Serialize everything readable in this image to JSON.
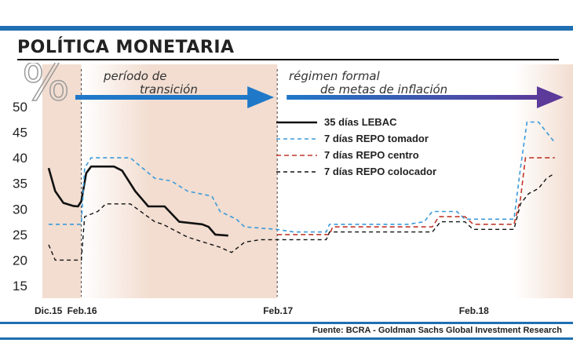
{
  "title": "POLÍTICA MONETARIA",
  "source": "Fuente: BCRA - Goldman Sachs Global Investment Research",
  "unit_symbol": "%",
  "colors": {
    "accent": "#1f6fb2",
    "shade": "#f2ddd0",
    "lebac": "#111111",
    "tomador": "#3a9ad9",
    "centro": "#c0392b",
    "colocador": "#111111",
    "arrow_blue": "#1f78c8",
    "arrow_purple": "#5b3a9a"
  },
  "chart_data": {
    "type": "line",
    "ylim": [
      15,
      50
    ],
    "yticks": [
      50,
      45,
      40,
      35,
      30,
      25,
      20,
      15
    ],
    "x_tick_labels": [
      "Dic.15",
      "Feb.16",
      "Feb.17",
      "Feb.18"
    ],
    "x_ticks_month": [
      0,
      2,
      14,
      26
    ],
    "x_range_month": [
      -0.3,
      31.5
    ],
    "periods": [
      {
        "label_lines": [
          "período de",
          "transición"
        ],
        "start_month": 2,
        "end_month": 14
      },
      {
        "label_lines": [
          "régimen formal",
          "de metas de inflación"
        ],
        "start_month": 14,
        "end_month": 31.5
      }
    ],
    "shaded_ranges_month": [
      [
        -0.3,
        2
      ],
      [
        2,
        14
      ],
      [
        28.5,
        31.5
      ]
    ],
    "series": [
      {
        "name": "35 días LEBAC",
        "style": "solid",
        "points": [
          [
            0,
            38
          ],
          [
            0.4,
            33.5
          ],
          [
            0.9,
            31.2
          ],
          [
            1.5,
            30.6
          ],
          [
            1.8,
            30.5
          ],
          [
            2,
            31.5
          ],
          [
            2.3,
            37
          ],
          [
            2.6,
            38.3
          ],
          [
            4,
            38.3
          ],
          [
            4.5,
            37.5
          ],
          [
            5.3,
            33.5
          ],
          [
            6.1,
            30.5
          ],
          [
            7.1,
            30.5
          ],
          [
            8,
            27.5
          ],
          [
            9.4,
            27
          ],
          [
            9.8,
            26.5
          ],
          [
            10.2,
            25
          ],
          [
            11,
            24.8
          ]
        ]
      },
      {
        "name": "7 días REPO tomador",
        "style": "dash",
        "points": [
          [
            0,
            27
          ],
          [
            2,
            27
          ],
          [
            2.2,
            38
          ],
          [
            2.6,
            40
          ],
          [
            5,
            40
          ],
          [
            6.5,
            36
          ],
          [
            7.5,
            35.5
          ],
          [
            8.5,
            33.5
          ],
          [
            10,
            32.5
          ],
          [
            10.5,
            29.5
          ],
          [
            11.5,
            28
          ],
          [
            12,
            26.5
          ],
          [
            14,
            26
          ],
          [
            15,
            25.5
          ],
          [
            17,
            25.5
          ],
          [
            17.2,
            27
          ],
          [
            22,
            27
          ],
          [
            23,
            27.5
          ],
          [
            23.5,
            29.5
          ],
          [
            25,
            29.5
          ],
          [
            25.5,
            28
          ],
          [
            28.5,
            28
          ],
          [
            28.9,
            38
          ],
          [
            29.3,
            47
          ],
          [
            30,
            47
          ],
          [
            31,
            43
          ]
        ]
      },
      {
        "name": "7 días REPO centro",
        "style": "dash",
        "points": [
          [
            14,
            25
          ],
          [
            17.2,
            25
          ],
          [
            17.4,
            26.5
          ],
          [
            23.5,
            26.5
          ],
          [
            23.9,
            28.5
          ],
          [
            25.5,
            28.5
          ],
          [
            26,
            27
          ],
          [
            28.5,
            27
          ],
          [
            28.9,
            32
          ],
          [
            29.2,
            40
          ],
          [
            31,
            40
          ]
        ]
      },
      {
        "name": "7 días REPO colocador",
        "style": "dash",
        "points": [
          [
            0,
            23
          ],
          [
            0.4,
            20
          ],
          [
            2,
            20
          ],
          [
            2.2,
            28.5
          ],
          [
            3,
            29.5
          ],
          [
            3.5,
            31
          ],
          [
            5,
            31
          ],
          [
            6.5,
            27.5
          ],
          [
            7,
            27
          ],
          [
            8.5,
            24.5
          ],
          [
            9.5,
            23.5
          ],
          [
            10.5,
            22.5
          ],
          [
            11.2,
            21.5
          ],
          [
            12,
            23.5
          ],
          [
            13,
            24
          ],
          [
            14,
            24
          ],
          [
            17,
            24
          ],
          [
            17.2,
            25.5
          ],
          [
            23.5,
            25.5
          ],
          [
            24,
            27.5
          ],
          [
            25.5,
            27.5
          ],
          [
            26,
            26
          ],
          [
            28.5,
            26
          ],
          [
            28.9,
            31
          ],
          [
            29.4,
            33
          ],
          [
            30,
            34
          ],
          [
            30.5,
            36
          ],
          [
            31,
            37
          ]
        ]
      }
    ]
  }
}
